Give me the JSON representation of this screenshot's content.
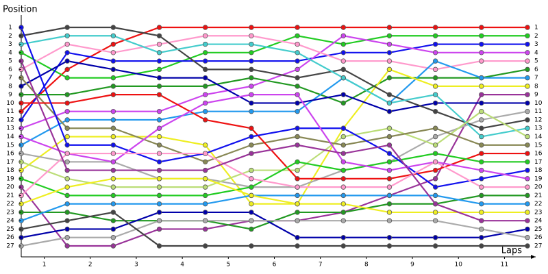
{
  "chart_data": {
    "type": "lapchart",
    "title": "Position",
    "x_label": "Laps",
    "x": [
      0,
      1,
      2,
      3,
      4,
      5,
      6,
      7,
      8,
      9,
      10,
      11
    ],
    "xlim": [
      0,
      11
    ],
    "xticks": [
      {
        "value": 0.5,
        "label": "1"
      },
      {
        "value": 1.5,
        "label": "2"
      },
      {
        "value": 2.5,
        "label": "3"
      },
      {
        "value": 3.5,
        "label": "4"
      },
      {
        "value": 4.5,
        "label": "5"
      },
      {
        "value": 5.5,
        "label": "6"
      },
      {
        "value": 6.5,
        "label": "7"
      },
      {
        "value": 7.5,
        "label": "8"
      },
      {
        "value": 8.5,
        "label": "9"
      },
      {
        "value": 9.5,
        "label": "10"
      },
      {
        "value": 10.5,
        "label": "11"
      }
    ],
    "ylim": [
      1,
      27
    ],
    "y_reversed": true,
    "yticks": [
      1,
      2,
      3,
      4,
      5,
      6,
      7,
      8,
      9,
      10,
      11,
      12,
      13,
      14,
      15,
      16,
      17,
      18,
      19,
      20,
      21,
      22,
      23,
      24,
      25,
      26,
      27
    ],
    "series": [
      {
        "color": "#ee1111",
        "values": [
          11,
          6,
          3,
          1,
          1,
          1,
          1,
          1,
          1,
          1,
          1,
          1
        ]
      },
      {
        "color": "#22cc22",
        "values": [
          4,
          7,
          7,
          6,
          4,
          4,
          2,
          3,
          2,
          2,
          2,
          2
        ]
      },
      {
        "color": "#1111ee",
        "values": [
          12,
          4,
          5,
          5,
          5,
          5,
          5,
          4,
          4,
          3,
          3,
          3
        ]
      },
      {
        "color": "#cc44ee",
        "values": [
          13,
          11,
          11,
          11,
          9,
          8,
          6,
          2,
          3,
          4,
          4,
          4
        ]
      },
      {
        "color": "#ff99cc",
        "values": [
          6,
          3,
          4,
          3,
          2,
          2,
          3,
          5,
          5,
          6,
          5,
          5
        ]
      },
      {
        "color": "#229922",
        "values": [
          9,
          9,
          8,
          8,
          8,
          7,
          8,
          10,
          7,
          7,
          7,
          6
        ]
      },
      {
        "color": "#2299ee",
        "values": [
          15,
          12,
          12,
          12,
          11,
          11,
          11,
          7,
          10,
          5,
          7,
          7
        ]
      },
      {
        "color": "#eeee22",
        "values": [
          18,
          14,
          14,
          14,
          15,
          22,
          22,
          13,
          6,
          8,
          8,
          8
        ]
      },
      {
        "color": "#993399",
        "values": [
          20,
          27,
          27,
          25,
          25,
          24,
          24,
          23,
          21,
          19,
          9,
          9
        ]
      },
      {
        "color": "#0000aa",
        "values": [
          8,
          5,
          6,
          7,
          7,
          10,
          10,
          9,
          11,
          10,
          10,
          10
        ]
      },
      {
        "color": "#aaaaaa",
        "values": [
          16,
          17,
          17,
          19,
          19,
          20,
          20,
          18,
          17,
          14,
          12,
          11
        ]
      },
      {
        "color": "#444444",
        "values": [
          2,
          1,
          1,
          2,
          6,
          6,
          7,
          6,
          9,
          11,
          13,
          12
        ]
      },
      {
        "color": "#44cccc",
        "values": [
          3,
          2,
          2,
          4,
          3,
          3,
          4,
          7,
          10,
          9,
          14,
          13
        ]
      },
      {
        "color": "#bbdd77",
        "values": [
          17,
          19,
          20,
          20,
          20,
          18,
          18,
          14,
          13,
          15,
          11,
          14
        ]
      },
      {
        "color": "#888855",
        "values": [
          7,
          13,
          13,
          15,
          17,
          15,
          14,
          15,
          14,
          13,
          15,
          15
        ]
      },
      {
        "color": "#ee1111",
        "values": [
          10,
          10,
          9,
          9,
          12,
          13,
          19,
          19,
          19,
          18,
          16,
          16
        ]
      },
      {
        "color": "#22cc22",
        "values": [
          19,
          21,
          21,
          21,
          21,
          20,
          17,
          18,
          17,
          16,
          17,
          17
        ]
      },
      {
        "color": "#1111ee",
        "values": [
          1,
          15,
          15,
          17,
          16,
          14,
          13,
          13,
          16,
          20,
          19,
          18
        ]
      },
      {
        "color": "#cc44ee",
        "values": [
          14,
          16,
          17,
          13,
          10,
          9,
          9,
          17,
          18,
          17,
          18,
          19
        ]
      },
      {
        "color": "#ff99cc",
        "values": [
          21,
          16,
          16,
          16,
          16,
          19,
          20,
          20,
          20,
          17,
          20,
          20
        ]
      },
      {
        "color": "#229922",
        "values": [
          23,
          23,
          24,
          24,
          24,
          25,
          23,
          23,
          22,
          22,
          21,
          21
        ]
      },
      {
        "color": "#2299ee",
        "values": [
          24,
          22,
          22,
          22,
          22,
          21,
          21,
          21,
          21,
          21,
          22,
          22
        ]
      },
      {
        "color": "#eeee22",
        "values": [
          22,
          20,
          19,
          19,
          19,
          21,
          22,
          22,
          23,
          23,
          23,
          23
        ]
      },
      {
        "color": "#993399",
        "values": [
          5,
          18,
          18,
          18,
          18,
          16,
          15,
          16,
          15,
          22,
          24,
          24
        ]
      },
      {
        "color": "#0000aa",
        "values": [
          26,
          25,
          25,
          23,
          23,
          23,
          26,
          26,
          26,
          26,
          26,
          25
        ]
      },
      {
        "color": "#aaaaaa",
        "values": [
          27,
          26,
          26,
          24,
          24,
          24,
          24,
          24,
          24,
          24,
          25,
          26
        ]
      },
      {
        "color": "#444444",
        "values": [
          25,
          24,
          23,
          27,
          27,
          27,
          27,
          27,
          27,
          27,
          27,
          27
        ]
      }
    ]
  }
}
